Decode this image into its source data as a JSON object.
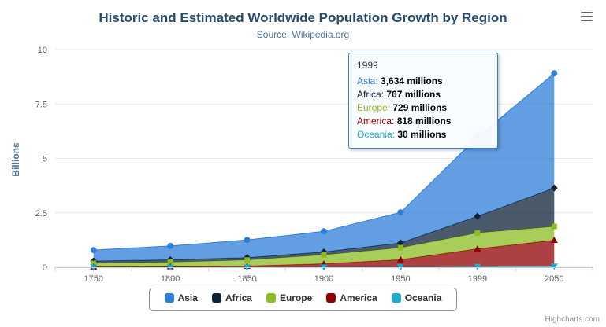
{
  "header": {
    "title": "Historic and Estimated Worldwide Population Growth by Region",
    "subtitle": "Source: Wikipedia.org"
  },
  "y_axis": {
    "title": "Billions"
  },
  "chart_data": {
    "type": "area",
    "stacking": "normal",
    "title": "Historic and Estimated Worldwide Population Growth by Region",
    "subtitle": "Source: Wikipedia.org",
    "ylabel": "Billions",
    "ylim": [
      0,
      10
    ],
    "y_ticks": [
      0,
      2.5,
      5,
      7.5,
      10
    ],
    "values_unit": "millions",
    "grid": "horizontal",
    "legend_position": "bottom",
    "categories": [
      "1750",
      "1800",
      "1850",
      "1900",
      "1950",
      "1999",
      "2050"
    ],
    "stack_order_bottom_to_top": [
      "Oceania",
      "America",
      "Europe",
      "Africa",
      "Asia"
    ],
    "series": [
      {
        "name": "Asia",
        "color": "#2f7ed8",
        "marker": "circle",
        "values_millions": [
          502,
          635,
          809,
          947,
          1402,
          3634,
          5268
        ]
      },
      {
        "name": "Africa",
        "color": "#0d233a",
        "marker": "diamond",
        "values_millions": [
          106,
          107,
          111,
          133,
          221,
          767,
          1766
        ]
      },
      {
        "name": "Europe",
        "color": "#8bbc21",
        "marker": "square",
        "values_millions": [
          163,
          203,
          276,
          408,
          547,
          729,
          628
        ]
      },
      {
        "name": "America",
        "color": "#910000",
        "marker": "triangle",
        "values_millions": [
          18,
          31,
          54,
          156,
          339,
          818,
          1201
        ]
      },
      {
        "name": "Oceania",
        "color": "#1aadce",
        "marker": "triangle-down",
        "values_millions": [
          2,
          2,
          2,
          6,
          13,
          30,
          46
        ]
      }
    ]
  },
  "hover_point": {
    "series": "Asia",
    "category": "1999",
    "index": 5
  },
  "tooltip": {
    "header": "1999",
    "suffix": " millions",
    "rows": [
      {
        "name": "Asia",
        "value": "3,634",
        "color": "#2f7ed8"
      },
      {
        "name": "Africa",
        "value": "767",
        "color": "#0d233a"
      },
      {
        "name": "Europe",
        "value": "729",
        "color": "#8bbc21"
      },
      {
        "name": "America",
        "value": "818",
        "color": "#910000"
      },
      {
        "name": "Oceania",
        "value": "30",
        "color": "#1aadce"
      }
    ]
  },
  "credits": {
    "label": "Highcharts.com"
  }
}
